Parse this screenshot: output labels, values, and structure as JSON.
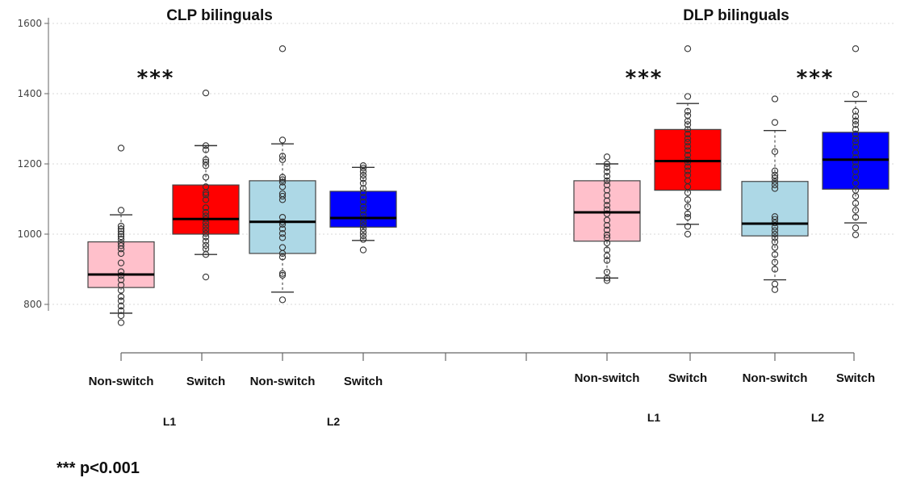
{
  "chart_data": {
    "type": "box",
    "ylim": [
      700,
      1600
    ],
    "yticks": [
      800,
      1000,
      1200,
      1400,
      1600
    ],
    "grid": true,
    "footnote": "*** p<0.001",
    "panels": [
      {
        "title": "CLP bilinguals",
        "groups": [
          "L1",
          "L2"
        ],
        "boxes": [
          {
            "label": "Non-switch",
            "group": "L1",
            "color": "#ffc0cb",
            "min": 775,
            "q1": 848,
            "median": 885,
            "q3": 978,
            "max": 1055,
            "points": [
              748,
              768,
              782,
              795,
              810,
              822,
              840,
              855,
              870,
              882,
              893,
              918,
              945,
              958,
              967,
              975,
              985,
              993,
              1000,
              1008,
              1015,
              1023,
              1068,
              1245
            ]
          },
          {
            "label": "Switch",
            "group": "L1",
            "color": "#ff0000",
            "min": 942,
            "q1": 1000,
            "median": 1043,
            "q3": 1140,
            "max": 1252,
            "points": [
              878,
              942,
              958,
              968,
              980,
              992,
              1002,
              1012,
              1022,
              1032,
              1043,
              1052,
              1062,
              1075,
              1098,
              1112,
              1118,
              1135,
              1162,
              1195,
              1205,
              1212,
              1240,
              1252,
              1402
            ]
          },
          {
            "label": "Non-switch",
            "group": "L2",
            "color": "#add8e6",
            "min": 835,
            "q1": 945,
            "median": 1035,
            "q3": 1152,
            "max": 1257,
            "points": [
              813,
              883,
              888,
              935,
              945,
              962,
              990,
              1002,
              1015,
              1028,
              1035,
              1048,
              1098,
              1108,
              1115,
              1135,
              1148,
              1155,
              1162,
              1212,
              1222,
              1268,
              1528
            ]
          },
          {
            "label": "Switch",
            "group": "L2",
            "color": "#0000ff",
            "min": 982,
            "q1": 1020,
            "median": 1046,
            "q3": 1122,
            "max": 1190,
            "points": [
              955,
              985,
              995,
              1005,
              1015,
              1025,
              1035,
              1045,
              1055,
              1068,
              1078,
              1092,
              1105,
              1118,
              1130,
              1145,
              1158,
              1168,
              1178,
              1188,
              1195
            ]
          }
        ],
        "significance": [
          {
            "between": "L1",
            "label": "***"
          }
        ]
      },
      {
        "title": "DLP bilinguals",
        "groups": [
          "L1",
          "L2"
        ],
        "boxes": [
          {
            "label": "Non-switch",
            "group": "L1",
            "color": "#ffc0cb",
            "min": 875,
            "q1": 980,
            "median": 1062,
            "q3": 1152,
            "max": 1200,
            "points": [
              868,
              875,
              892,
              925,
              938,
              955,
              975,
              990,
              998,
              1012,
              1025,
              1040,
              1058,
              1070,
              1082,
              1095,
              1110,
              1125,
              1140,
              1152,
              1165,
              1178,
              1190,
              1200,
              1220
            ]
          },
          {
            "label": "Switch",
            "group": "L1",
            "color": "#ff0000",
            "min": 1028,
            "q1": 1125,
            "median": 1208,
            "q3": 1298,
            "max": 1372,
            "points": [
              1000,
              1022,
              1048,
              1058,
              1078,
              1098,
              1118,
              1135,
              1152,
              1168,
              1180,
              1192,
              1205,
              1212,
              1225,
              1238,
              1250,
              1262,
              1272,
              1285,
              1298,
              1312,
              1322,
              1338,
              1350,
              1392,
              1528
            ]
          },
          {
            "label": "Non-switch",
            "group": "L2",
            "color": "#add8e6",
            "min": 870,
            "q1": 995,
            "median": 1030,
            "q3": 1150,
            "max": 1295,
            "points": [
              842,
              858,
              900,
              920,
              942,
              962,
              978,
              990,
              1000,
              1010,
              1020,
              1032,
              1042,
              1050,
              1130,
              1140,
              1150,
              1160,
              1168,
              1180,
              1235,
              1318,
              1385
            ]
          },
          {
            "label": "Switch",
            "group": "L2",
            "color": "#0000ff",
            "min": 1032,
            "q1": 1128,
            "median": 1212,
            "q3": 1290,
            "max": 1378,
            "points": [
              998,
              1018,
              1048,
              1068,
              1088,
              1108,
              1125,
              1145,
              1162,
              1178,
              1192,
              1205,
              1218,
              1232,
              1248,
              1262,
              1272,
              1285,
              1298,
              1312,
              1322,
              1335,
              1350,
              1398,
              1528
            ]
          }
        ],
        "significance": [
          {
            "between": "L1",
            "label": "***"
          },
          {
            "between": "L2",
            "label": "***"
          }
        ]
      }
    ]
  }
}
